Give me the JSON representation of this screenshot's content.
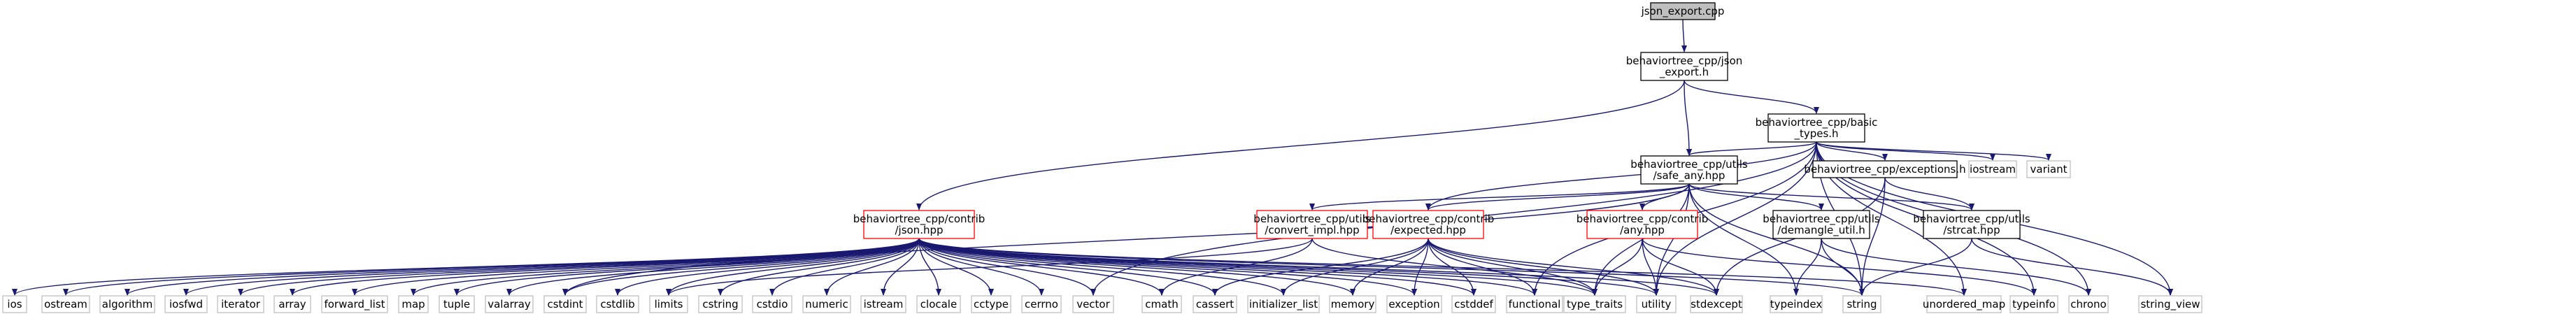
{
  "colors": {
    "root_fill": "#bfbfbf",
    "documented_border": "#000000",
    "undocumented_border": "#ff0000",
    "system_border": "#bfbfbf",
    "edge": "#191970"
  },
  "nodes": [
    {
      "id": "root",
      "label": [
        "json_export.cpp"
      ],
      "kind": "root"
    },
    {
      "id": "json_export_h",
      "label": [
        "behaviortree_cpp/json",
        "_export.h"
      ],
      "kind": "doc"
    },
    {
      "id": "basic_types",
      "label": [
        "behaviortree_cpp/basic",
        "_types.h"
      ],
      "kind": "doc"
    },
    {
      "id": "contrib_json",
      "label": [
        "behaviortree_cpp/contrib",
        "/json.hpp"
      ],
      "kind": "undoc"
    },
    {
      "id": "safe_any",
      "label": [
        "behaviortree_cpp/utils",
        "/safe_any.hpp"
      ],
      "kind": "doc"
    },
    {
      "id": "exceptions_h",
      "label": [
        "behaviortree_cpp/exceptions.h"
      ],
      "kind": "doc"
    },
    {
      "id": "iostream",
      "label": [
        "iostream"
      ],
      "kind": "sys"
    },
    {
      "id": "variant",
      "label": [
        "variant"
      ],
      "kind": "sys"
    },
    {
      "id": "convert_impl",
      "label": [
        "behaviortree_cpp/utils",
        "/convert_impl.hpp"
      ],
      "kind": "undoc"
    },
    {
      "id": "expected",
      "label": [
        "behaviortree_cpp/contrib",
        "/expected.hpp"
      ],
      "kind": "undoc"
    },
    {
      "id": "any_hpp",
      "label": [
        "behaviortree_cpp/contrib",
        "/any.hpp"
      ],
      "kind": "undoc"
    },
    {
      "id": "demangle",
      "label": [
        "behaviortree_cpp/utils",
        "/demangle_util.h"
      ],
      "kind": "doc"
    },
    {
      "id": "strcat",
      "label": [
        "behaviortree_cpp/utils",
        "/strcat.hpp"
      ],
      "kind": "doc"
    },
    {
      "id": "ios",
      "label": [
        "ios"
      ],
      "kind": "sys"
    },
    {
      "id": "ostream",
      "label": [
        "ostream"
      ],
      "kind": "sys"
    },
    {
      "id": "algorithm",
      "label": [
        "algorithm"
      ],
      "kind": "sys"
    },
    {
      "id": "iosfwd",
      "label": [
        "iosfwd"
      ],
      "kind": "sys"
    },
    {
      "id": "iterator",
      "label": [
        "iterator"
      ],
      "kind": "sys"
    },
    {
      "id": "array",
      "label": [
        "array"
      ],
      "kind": "sys"
    },
    {
      "id": "forward_list",
      "label": [
        "forward_list"
      ],
      "kind": "sys"
    },
    {
      "id": "map",
      "label": [
        "map"
      ],
      "kind": "sys"
    },
    {
      "id": "tuple",
      "label": [
        "tuple"
      ],
      "kind": "sys"
    },
    {
      "id": "valarray",
      "label": [
        "valarray"
      ],
      "kind": "sys"
    },
    {
      "id": "cstdint",
      "label": [
        "cstdint"
      ],
      "kind": "sys"
    },
    {
      "id": "cstdlib",
      "label": [
        "cstdlib"
      ],
      "kind": "sys"
    },
    {
      "id": "limits",
      "label": [
        "limits"
      ],
      "kind": "sys"
    },
    {
      "id": "cstring",
      "label": [
        "cstring"
      ],
      "kind": "sys"
    },
    {
      "id": "cstdio",
      "label": [
        "cstdio"
      ],
      "kind": "sys"
    },
    {
      "id": "numeric",
      "label": [
        "numeric"
      ],
      "kind": "sys"
    },
    {
      "id": "istream",
      "label": [
        "istream"
      ],
      "kind": "sys"
    },
    {
      "id": "clocale",
      "label": [
        "clocale"
      ],
      "kind": "sys"
    },
    {
      "id": "cctype",
      "label": [
        "cctype"
      ],
      "kind": "sys"
    },
    {
      "id": "cerrno",
      "label": [
        "cerrno"
      ],
      "kind": "sys"
    },
    {
      "id": "vector",
      "label": [
        "vector"
      ],
      "kind": "sys"
    },
    {
      "id": "cmath",
      "label": [
        "cmath"
      ],
      "kind": "sys"
    },
    {
      "id": "cassert",
      "label": [
        "cassert"
      ],
      "kind": "sys"
    },
    {
      "id": "initializer_list",
      "label": [
        "initializer_list"
      ],
      "kind": "sys"
    },
    {
      "id": "memory",
      "label": [
        "memory"
      ],
      "kind": "sys"
    },
    {
      "id": "exception",
      "label": [
        "exception"
      ],
      "kind": "sys"
    },
    {
      "id": "cstddef",
      "label": [
        "cstddef"
      ],
      "kind": "sys"
    },
    {
      "id": "functional",
      "label": [
        "functional"
      ],
      "kind": "sys"
    },
    {
      "id": "type_traits",
      "label": [
        "type_traits"
      ],
      "kind": "sys"
    },
    {
      "id": "utility",
      "label": [
        "utility"
      ],
      "kind": "sys"
    },
    {
      "id": "stdexcept",
      "label": [
        "stdexcept"
      ],
      "kind": "sys"
    },
    {
      "id": "typeindex",
      "label": [
        "typeindex"
      ],
      "kind": "sys"
    },
    {
      "id": "string",
      "label": [
        "string"
      ],
      "kind": "sys"
    },
    {
      "id": "unordered_map",
      "label": [
        "unordered_map"
      ],
      "kind": "sys"
    },
    {
      "id": "typeinfo",
      "label": [
        "typeinfo"
      ],
      "kind": "sys"
    },
    {
      "id": "chrono",
      "label": [
        "chrono"
      ],
      "kind": "sys"
    },
    {
      "id": "string_view",
      "label": [
        "string_view"
      ],
      "kind": "sys"
    }
  ],
  "edges": [
    [
      "root",
      "json_export_h"
    ],
    [
      "json_export_h",
      "basic_types"
    ],
    [
      "json_export_h",
      "contrib_json"
    ],
    [
      "json_export_h",
      "safe_any"
    ],
    [
      "basic_types",
      "safe_any"
    ],
    [
      "basic_types",
      "exceptions_h"
    ],
    [
      "basic_types",
      "iostream"
    ],
    [
      "basic_types",
      "variant"
    ],
    [
      "basic_types",
      "expected"
    ],
    [
      "basic_types",
      "vector"
    ],
    [
      "basic_types",
      "functional"
    ],
    [
      "basic_types",
      "utility"
    ],
    [
      "basic_types",
      "string"
    ],
    [
      "basic_types",
      "typeinfo"
    ],
    [
      "basic_types",
      "chrono"
    ],
    [
      "basic_types",
      "string_view"
    ],
    [
      "basic_types",
      "unordered_map"
    ],
    [
      "contrib_json",
      "ios"
    ],
    [
      "contrib_json",
      "ostream"
    ],
    [
      "contrib_json",
      "algorithm"
    ],
    [
      "contrib_json",
      "iosfwd"
    ],
    [
      "contrib_json",
      "iterator"
    ],
    [
      "contrib_json",
      "array"
    ],
    [
      "contrib_json",
      "forward_list"
    ],
    [
      "contrib_json",
      "map"
    ],
    [
      "contrib_json",
      "tuple"
    ],
    [
      "contrib_json",
      "valarray"
    ],
    [
      "contrib_json",
      "cstdint"
    ],
    [
      "contrib_json",
      "cstdlib"
    ],
    [
      "contrib_json",
      "limits"
    ],
    [
      "contrib_json",
      "cstring"
    ],
    [
      "contrib_json",
      "cstdio"
    ],
    [
      "contrib_json",
      "numeric"
    ],
    [
      "contrib_json",
      "istream"
    ],
    [
      "contrib_json",
      "clocale"
    ],
    [
      "contrib_json",
      "cctype"
    ],
    [
      "contrib_json",
      "cerrno"
    ],
    [
      "contrib_json",
      "vector"
    ],
    [
      "contrib_json",
      "cmath"
    ],
    [
      "contrib_json",
      "cassert"
    ],
    [
      "contrib_json",
      "initializer_list"
    ],
    [
      "contrib_json",
      "memory"
    ],
    [
      "contrib_json",
      "exception"
    ],
    [
      "contrib_json",
      "cstddef"
    ],
    [
      "contrib_json",
      "functional"
    ],
    [
      "contrib_json",
      "type_traits"
    ],
    [
      "contrib_json",
      "utility"
    ],
    [
      "contrib_json",
      "stdexcept"
    ],
    [
      "contrib_json",
      "string"
    ],
    [
      "contrib_json",
      "unordered_map"
    ],
    [
      "safe_any",
      "convert_impl"
    ],
    [
      "safe_any",
      "expected"
    ],
    [
      "safe_any",
      "any_hpp"
    ],
    [
      "safe_any",
      "demangle"
    ],
    [
      "safe_any",
      "strcat"
    ],
    [
      "safe_any",
      "string"
    ],
    [
      "safe_any",
      "type_traits"
    ],
    [
      "safe_any",
      "typeindex"
    ],
    [
      "safe_any",
      "cstdint"
    ],
    [
      "safe_any",
      "utility"
    ],
    [
      "exceptions_h",
      "stdexcept"
    ],
    [
      "exceptions_h",
      "strcat"
    ],
    [
      "exceptions_h",
      "string"
    ],
    [
      "convert_impl",
      "type_traits"
    ],
    [
      "convert_impl",
      "cmath"
    ],
    [
      "convert_impl",
      "limits"
    ],
    [
      "expected",
      "cassert"
    ],
    [
      "expected",
      "exception"
    ],
    [
      "expected",
      "functional"
    ],
    [
      "expected",
      "initializer_list"
    ],
    [
      "expected",
      "memory"
    ],
    [
      "expected",
      "new_ignored"
    ],
    [
      "expected",
      "stdexcept"
    ],
    [
      "expected",
      "system_error_ignored"
    ],
    [
      "expected",
      "type_traits"
    ],
    [
      "expected",
      "utility"
    ],
    [
      "expected",
      "cstddef"
    ],
    [
      "any_hpp",
      "stdexcept"
    ],
    [
      "any_hpp",
      "typeinfo"
    ],
    [
      "any_hpp",
      "type_traits"
    ],
    [
      "any_hpp",
      "utility"
    ],
    [
      "demangle",
      "string"
    ],
    [
      "demangle",
      "typeindex"
    ],
    [
      "demangle",
      "chrono"
    ],
    [
      "strcat",
      "string"
    ],
    [
      "strcat",
      "string_view"
    ]
  ]
}
